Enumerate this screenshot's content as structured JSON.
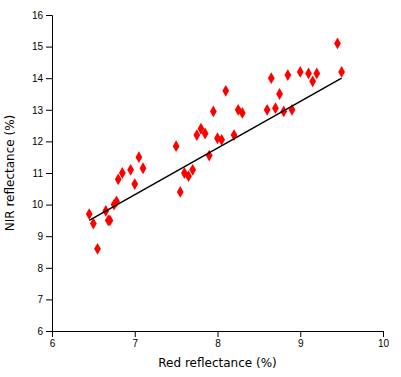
{
  "chart_data": {
    "type": "scatter",
    "xlabel": "Red reflectance (%)",
    "ylabel": "NIR reflectance (%)",
    "series": [
      {
        "type": "scatter",
        "color": "#ff0000",
        "marker": "diamond",
        "x": [
          6.45,
          6.5,
          6.55,
          6.65,
          6.68,
          6.7,
          6.75,
          6.78,
          6.8,
          6.85,
          6.95,
          7.0,
          7.05,
          7.1,
          7.5,
          7.55,
          7.6,
          7.65,
          7.7,
          7.75,
          7.8,
          7.85,
          7.9,
          7.95,
          8.0,
          8.05,
          8.1,
          8.2,
          8.25,
          8.3,
          8.6,
          8.65,
          8.7,
          8.75,
          8.8,
          8.85,
          8.9,
          9.0,
          9.1,
          9.15,
          9.2,
          9.45,
          9.5
        ],
        "values": [
          9.7,
          9.4,
          8.6,
          9.8,
          9.5,
          9.5,
          10.0,
          10.1,
          10.8,
          11.0,
          11.1,
          10.65,
          11.5,
          11.15,
          11.85,
          10.4,
          11.0,
          10.9,
          11.1,
          12.2,
          12.4,
          12.25,
          11.55,
          12.95,
          12.1,
          12.05,
          13.6,
          12.2,
          13.0,
          12.9,
          13.0,
          14.0,
          13.05,
          13.5,
          12.95,
          14.1,
          13.0,
          14.2,
          14.15,
          13.9,
          14.15,
          15.1,
          14.2
        ]
      },
      {
        "type": "line",
        "color": "#000000",
        "line_style": "solid",
        "x": [
          6.45,
          9.5
        ],
        "values": [
          9.5,
          14.0
        ]
      }
    ],
    "xlim": [
      6.0,
      10.0
    ],
    "ylim": [
      6.0,
      16.0
    ],
    "xticks": [
      6,
      7,
      8,
      9,
      10
    ],
    "yticks": [
      6,
      7,
      8,
      9,
      10,
      11,
      12,
      13,
      14,
      15,
      16
    ],
    "grid": false
  }
}
